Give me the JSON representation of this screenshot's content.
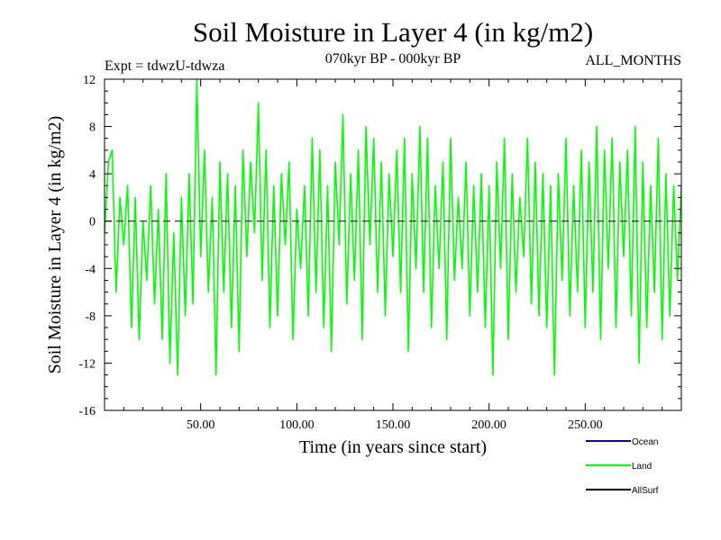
{
  "chart_data": {
    "type": "line",
    "title": "Soil Moisture in Layer 4 (in kg/m2)",
    "subtitle": "070kyr BP - 000kyr BP",
    "experiment_label": "Expt = tdwzU-tdwza",
    "period_label": "ALL_MONTHS",
    "xlabel": "Time (in years since start)",
    "ylabel": "Soil Moisture in Layer 4 (in kg/m2)",
    "xlim": [
      0,
      300
    ],
    "ylim": [
      -16,
      12
    ],
    "x_ticks": [
      50,
      100,
      150,
      200,
      250
    ],
    "x_tick_labels": [
      "50.00",
      "100.00",
      "150.00",
      "200.00",
      "250.00"
    ],
    "y_ticks": [
      12,
      8,
      4,
      0,
      -4,
      -8,
      -12,
      -16
    ],
    "y_tick_labels": [
      "12",
      "8",
      "4",
      "0",
      "-4",
      "-8",
      "-12",
      "-16"
    ],
    "zero_line": 0,
    "series": [
      {
        "name": "Land",
        "color": "#00ff00",
        "x_start": 0,
        "x_step": 2,
        "values": [
          -1,
          5,
          6,
          -6,
          2,
          -2,
          3,
          -9,
          2,
          -10,
          0,
          -5,
          3,
          -7,
          1,
          -10,
          4,
          -12,
          -1,
          -13,
          2,
          -8,
          4,
          -7,
          12,
          -3,
          6,
          -6,
          2,
          -13,
          5,
          -6,
          4,
          -9,
          3,
          -11,
          6,
          -3,
          5,
          -1,
          10,
          -5,
          6,
          -9,
          3,
          -8,
          4,
          -2,
          5,
          -10,
          1,
          -4,
          3,
          -8,
          7,
          -6,
          6,
          -9,
          3,
          -11,
          5,
          -2,
          9,
          -7,
          4,
          -5,
          6,
          -10,
          8,
          -2,
          7,
          -6,
          5,
          -8,
          4,
          -3,
          6,
          -6,
          7,
          -11,
          4,
          -4,
          8,
          -6,
          7,
          -9,
          3,
          -4,
          5,
          -10,
          7,
          -5,
          2,
          -4,
          5,
          -8,
          3,
          -6,
          4,
          -9,
          3,
          -13,
          5,
          -4,
          7,
          -10,
          4,
          -6,
          2,
          -3,
          7,
          -7,
          5,
          -8,
          4,
          -9,
          3,
          -13,
          4,
          -5,
          7,
          -8,
          3,
          -6,
          6,
          -9,
          5,
          -6,
          8,
          -10,
          6,
          -4,
          7,
          -9,
          5,
          -3,
          6,
          -8,
          8,
          -12,
          5,
          -9,
          3,
          -6,
          7,
          -10,
          4,
          -8,
          3,
          -5,
          3
        ]
      },
      {
        "name": "Ocean",
        "color": "#0000cc",
        "values": []
      },
      {
        "name": "AllSurf",
        "color": "#000000",
        "values": []
      }
    ],
    "legend": {
      "placement": "bottom-right",
      "entries": [
        {
          "label": "Ocean",
          "color": "#0000cc"
        },
        {
          "label": "Land",
          "color": "#00ff00"
        },
        {
          "label": "AllSurf",
          "color": "#000000"
        }
      ]
    }
  }
}
